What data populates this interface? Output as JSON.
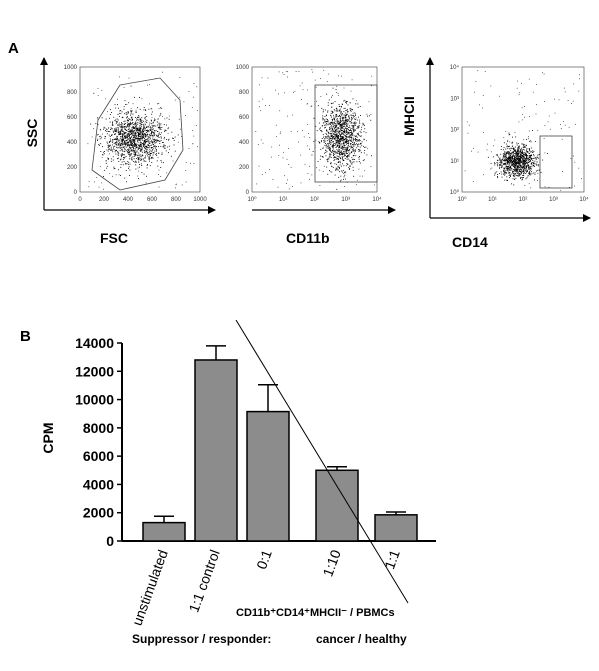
{
  "panel_a_label": "A",
  "panel_b_label": "B",
  "chart_data": [
    {
      "type": "scatter",
      "panel": "A1",
      "xlabel": "FSC",
      "ylabel": "SSC",
      "xlim": [
        0,
        1000
      ],
      "ylim": [
        0,
        1000
      ],
      "x_ticks": [
        "0",
        "200",
        "400",
        "600",
        "800",
        "1000"
      ],
      "y_ticks": [
        "0",
        "200",
        "400",
        "600",
        "800",
        "1000"
      ],
      "cluster_center": [
        450,
        430
      ],
      "gate": "polygon"
    },
    {
      "type": "scatter",
      "panel": "A2",
      "xlabel": "CD11b",
      "ylabel": "",
      "xscale": "log",
      "xlim": [
        1,
        10000
      ],
      "ylim": [
        0,
        1000
      ],
      "x_ticks": [
        "10⁰",
        "10¹",
        "10²",
        "10³",
        "10⁴"
      ],
      "y_ticks": [
        "0",
        "200",
        "400",
        "600",
        "800",
        "1000"
      ],
      "cluster_center": [
        700,
        450
      ],
      "gate_x": [
        100,
        10000
      ],
      "gate_y": [
        80,
        870
      ]
    },
    {
      "type": "scatter",
      "panel": "A3",
      "xlabel": "CD14",
      "ylabel": "MHCII",
      "xscale": "log",
      "yscale": "log",
      "xlim": [
        1,
        10000
      ],
      "ylim": [
        1,
        10000
      ],
      "x_ticks": [
        "10⁰",
        "10¹",
        "10²",
        "10³",
        "10⁴"
      ],
      "y_ticks": [
        "10⁰",
        "10¹",
        "10²",
        "10³",
        "10⁴"
      ],
      "cluster_center": [
        60,
        10
      ],
      "gate_x": [
        150,
        1100
      ],
      "gate_y": [
        3,
        100
      ]
    },
    {
      "type": "bar",
      "panel": "B",
      "ylabel": "CPM",
      "ylim": [
        0,
        14000
      ],
      "y_ticks": [
        "0",
        "2000",
        "4000",
        "6000",
        "8000",
        "10000",
        "12000",
        "14000"
      ],
      "y_tick_values": [
        0,
        2000,
        4000,
        6000,
        8000,
        10000,
        12000,
        14000
      ],
      "categories": [
        "unstimulated",
        "1:1 control",
        "0:1",
        "1:10",
        "1:1"
      ],
      "values": [
        1300,
        12800,
        9150,
        5000,
        1850
      ],
      "errors": [
        450,
        1000,
        1900,
        250,
        200
      ],
      "bar_color": "#8c8c8c",
      "group_label": "CD11b⁺CD14⁺MHCII⁻ / PBMCs",
      "footer_left": "Suppressor / responder:",
      "footer_right": "cancer / healthy"
    }
  ]
}
